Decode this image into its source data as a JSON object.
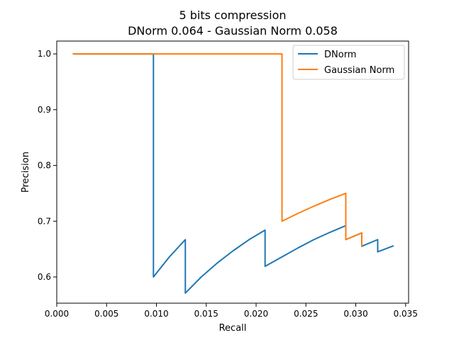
{
  "chart_data": {
    "type": "line",
    "title": "5 bits compression",
    "subtitle": "DNorm 0.064 - Gaussian Norm 0.058",
    "xlabel": "Recall",
    "ylabel": "Precision",
    "xlim": [
      0.0,
      0.0353
    ],
    "ylim": [
      0.553,
      1.023
    ],
    "xticks": [
      0.0,
      0.005,
      0.01,
      0.015,
      0.02,
      0.025,
      0.03,
      0.035
    ],
    "xtick_labels": [
      "0.000",
      "0.005",
      "0.010",
      "0.015",
      "0.020",
      "0.025",
      "0.030",
      "0.035"
    ],
    "yticks": [
      0.6,
      0.7,
      0.8,
      0.9,
      1.0
    ],
    "ytick_labels": [
      "0.6",
      "0.7",
      "0.8",
      "0.9",
      "1.0"
    ],
    "grid": false,
    "legend": "top-right",
    "series": [
      {
        "name": "DNorm",
        "color": "#1f77b4",
        "x": [
          0.0016,
          0.0097,
          0.0097,
          0.0113,
          0.0129,
          0.0129,
          0.0145,
          0.0161,
          0.0177,
          0.0193,
          0.0209,
          0.0209,
          0.0226,
          0.0242,
          0.0258,
          0.0274,
          0.029,
          0.029,
          0.0306,
          0.0306,
          0.0322,
          0.0322,
          0.0338
        ],
        "y": [
          1.0,
          1.0,
          0.6,
          0.636,
          0.667,
          0.571,
          0.6,
          0.625,
          0.647,
          0.667,
          0.684,
          0.619,
          0.636,
          0.652,
          0.667,
          0.68,
          0.692,
          0.667,
          0.679,
          0.655,
          0.667,
          0.645,
          0.656
        ]
      },
      {
        "name": "Gaussian Norm",
        "color": "#ff7f0e",
        "x": [
          0.0016,
          0.0226,
          0.0226,
          0.0242,
          0.0258,
          0.0274,
          0.029,
          0.029,
          0.0306,
          0.0306
        ],
        "y": [
          1.0,
          1.0,
          0.7,
          0.714,
          0.727,
          0.739,
          0.75,
          0.667,
          0.679,
          0.655
        ]
      }
    ]
  }
}
